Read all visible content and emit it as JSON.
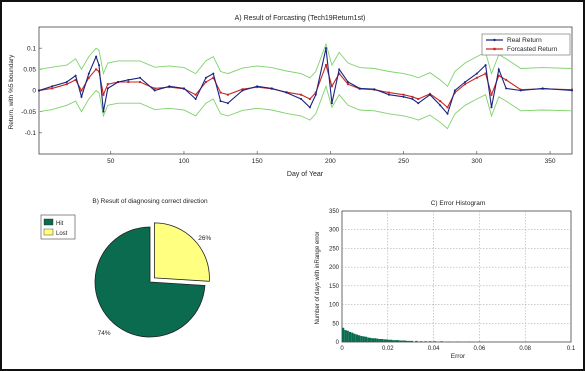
{
  "chart_data": [
    {
      "type": "line",
      "title": "A) Result of Forcasting (Tech19Return1st)",
      "xlabel": "Day of Year",
      "ylabel": "Return, with %5 boundary",
      "xlim": [
        1,
        365
      ],
      "ylim": [
        -0.15,
        0.15
      ],
      "x_ticks": [
        50,
        100,
        150,
        200,
        250,
        300,
        350
      ],
      "y_ticks": [
        -0.1,
        -0.05,
        0,
        0.05,
        0.1
      ],
      "y_tick_labels": [
        "-0.1",
        "-0.05",
        "0",
        "0.05",
        "0.1"
      ],
      "legend": {
        "position": "top-right",
        "entries": [
          "Real Return",
          "Forcasted Return"
        ]
      },
      "series": [
        {
          "name": "Real Return",
          "color": "#1a237e",
          "points": [
            [
              1,
              0
            ],
            [
              10,
              0.01
            ],
            [
              20,
              0.02
            ],
            [
              26,
              0.035
            ],
            [
              30,
              -0.015
            ],
            [
              35,
              0.04
            ],
            [
              40,
              0.08
            ],
            [
              42,
              0.06
            ],
            [
              45,
              -0.05
            ],
            [
              48,
              0.005
            ],
            [
              55,
              0.02
            ],
            [
              62,
              0.025
            ],
            [
              70,
              0.03
            ],
            [
              80,
              0
            ],
            [
              90,
              0.01
            ],
            [
              100,
              0.005
            ],
            [
              108,
              -0.02
            ],
            [
              115,
              0.03
            ],
            [
              120,
              0.04
            ],
            [
              125,
              -0.025
            ],
            [
              130,
              -0.03
            ],
            [
              140,
              0
            ],
            [
              150,
              0.01
            ],
            [
              160,
              0.005
            ],
            [
              170,
              -0.005
            ],
            [
              180,
              -0.02
            ],
            [
              186,
              -0.04
            ],
            [
              190,
              -0.01
            ],
            [
              197,
              0.1
            ],
            [
              201,
              -0.03
            ],
            [
              206,
              0.05
            ],
            [
              212,
              0.02
            ],
            [
              220,
              0.005
            ],
            [
              230,
              0.003
            ],
            [
              240,
              -0.01
            ],
            [
              250,
              -0.015
            ],
            [
              256,
              -0.02
            ],
            [
              260,
              -0.03
            ],
            [
              268,
              -0.01
            ],
            [
              275,
              -0.035
            ],
            [
              280,
              -0.055
            ],
            [
              285,
              0
            ],
            [
              292,
              0.02
            ],
            [
              300,
              0.04
            ],
            [
              306,
              0.06
            ],
            [
              310,
              -0.04
            ],
            [
              315,
              0.05
            ],
            [
              320,
              0.005
            ],
            [
              330,
              0
            ],
            [
              345,
              0.005
            ],
            [
              365,
              0
            ]
          ]
        },
        {
          "name": "Forcasted Return",
          "color": "#c62828",
          "points": [
            [
              1,
              0
            ],
            [
              10,
              0.005
            ],
            [
              20,
              0.015
            ],
            [
              26,
              0.025
            ],
            [
              30,
              0
            ],
            [
              35,
              0.03
            ],
            [
              40,
              0.05
            ],
            [
              42,
              0.045
            ],
            [
              45,
              -0.01
            ],
            [
              48,
              0.015
            ],
            [
              55,
              0.02
            ],
            [
              62,
              0.02
            ],
            [
              70,
              0.02
            ],
            [
              80,
              0.005
            ],
            [
              90,
              0.008
            ],
            [
              100,
              0.004
            ],
            [
              108,
              -0.01
            ],
            [
              115,
              0.02
            ],
            [
              120,
              0.03
            ],
            [
              125,
              -0.005
            ],
            [
              130,
              -0.01
            ],
            [
              140,
              0.003
            ],
            [
              150,
              0.008
            ],
            [
              160,
              0.004
            ],
            [
              170,
              -0.004
            ],
            [
              180,
              -0.01
            ],
            [
              186,
              -0.02
            ],
            [
              190,
              -0.005
            ],
            [
              197,
              0.06
            ],
            [
              201,
              0.01
            ],
            [
              206,
              0.04
            ],
            [
              212,
              0.015
            ],
            [
              220,
              0.004
            ],
            [
              230,
              0.002
            ],
            [
              240,
              -0.005
            ],
            [
              250,
              -0.01
            ],
            [
              256,
              -0.015
            ],
            [
              260,
              -0.02
            ],
            [
              268,
              -0.008
            ],
            [
              275,
              -0.025
            ],
            [
              280,
              -0.04
            ],
            [
              285,
              -0.005
            ],
            [
              292,
              0.015
            ],
            [
              300,
              0.03
            ],
            [
              306,
              0.04
            ],
            [
              310,
              -0.01
            ],
            [
              315,
              0.035
            ],
            [
              320,
              0.025
            ],
            [
              330,
              0.002
            ],
            [
              345,
              0.004
            ],
            [
              365,
              0.002
            ]
          ]
        },
        {
          "name": "",
          "color": "#7ed36b",
          "points": [
            [
              1,
              0.05
            ],
            [
              10,
              0.055
            ],
            [
              20,
              0.06
            ],
            [
              26,
              0.075
            ],
            [
              30,
              0.05
            ],
            [
              35,
              0.08
            ],
            [
              40,
              0.1
            ],
            [
              42,
              0.095
            ],
            [
              45,
              0.04
            ],
            [
              48,
              0.065
            ],
            [
              55,
              0.07
            ],
            [
              62,
              0.07
            ],
            [
              70,
              0.07
            ],
            [
              80,
              0.055
            ],
            [
              90,
              0.058
            ],
            [
              100,
              0.054
            ],
            [
              108,
              0.04
            ],
            [
              115,
              0.07
            ],
            [
              120,
              0.08
            ],
            [
              125,
              0.045
            ],
            [
              130,
              0.04
            ],
            [
              140,
              0.053
            ],
            [
              150,
              0.058
            ],
            [
              160,
              0.054
            ],
            [
              170,
              0.046
            ],
            [
              180,
              0.04
            ],
            [
              186,
              0.03
            ],
            [
              190,
              0.045
            ],
            [
              197,
              0.11
            ],
            [
              201,
              0.06
            ],
            [
              206,
              0.09
            ],
            [
              212,
              0.065
            ],
            [
              220,
              0.054
            ],
            [
              230,
              0.052
            ],
            [
              240,
              0.045
            ],
            [
              250,
              0.04
            ],
            [
              256,
              0.035
            ],
            [
              260,
              0.03
            ],
            [
              268,
              0.042
            ],
            [
              275,
              0.025
            ],
            [
              280,
              0.01
            ],
            [
              285,
              0.045
            ],
            [
              292,
              0.065
            ],
            [
              300,
              0.08
            ],
            [
              306,
              0.09
            ],
            [
              310,
              0.04
            ],
            [
              315,
              0.085
            ],
            [
              320,
              0.075
            ],
            [
              330,
              0.052
            ],
            [
              345,
              0.054
            ],
            [
              365,
              0.052
            ]
          ]
        },
        {
          "name": "",
          "color": "#7ed36b",
          "points": [
            [
              1,
              -0.05
            ],
            [
              10,
              -0.045
            ],
            [
              20,
              -0.035
            ],
            [
              26,
              -0.025
            ],
            [
              30,
              -0.05
            ],
            [
              35,
              -0.02
            ],
            [
              40,
              0
            ],
            [
              42,
              -0.005
            ],
            [
              45,
              -0.06
            ],
            [
              48,
              -0.035
            ],
            [
              55,
              -0.03
            ],
            [
              62,
              -0.03
            ],
            [
              70,
              -0.03
            ],
            [
              80,
              -0.045
            ],
            [
              90,
              -0.042
            ],
            [
              100,
              -0.046
            ],
            [
              108,
              -0.06
            ],
            [
              115,
              -0.03
            ],
            [
              120,
              -0.02
            ],
            [
              125,
              -0.055
            ],
            [
              130,
              -0.06
            ],
            [
              140,
              -0.047
            ],
            [
              150,
              -0.042
            ],
            [
              160,
              -0.046
            ],
            [
              170,
              -0.054
            ],
            [
              180,
              -0.06
            ],
            [
              186,
              -0.07
            ],
            [
              190,
              -0.055
            ],
            [
              197,
              0.01
            ],
            [
              201,
              -0.04
            ],
            [
              206,
              -0.01
            ],
            [
              212,
              -0.035
            ],
            [
              220,
              -0.046
            ],
            [
              230,
              -0.048
            ],
            [
              240,
              -0.055
            ],
            [
              250,
              -0.06
            ],
            [
              256,
              -0.065
            ],
            [
              260,
              -0.07
            ],
            [
              268,
              -0.058
            ],
            [
              275,
              -0.075
            ],
            [
              280,
              -0.09
            ],
            [
              285,
              -0.055
            ],
            [
              292,
              -0.035
            ],
            [
              300,
              -0.02
            ],
            [
              306,
              -0.01
            ],
            [
              310,
              -0.06
            ],
            [
              315,
              -0.015
            ],
            [
              320,
              -0.025
            ],
            [
              330,
              -0.048
            ],
            [
              345,
              -0.046
            ],
            [
              365,
              -0.048
            ]
          ]
        }
      ]
    },
    {
      "type": "pie",
      "title": "B) Result of diagnosing correct direction",
      "categories": [
        "Hit",
        "Lost"
      ],
      "values": [
        74,
        26
      ],
      "labels": [
        "74%",
        "26%"
      ],
      "colors": [
        "#0b6b4f",
        "#ffff80"
      ],
      "exploded": [
        "Lost"
      ],
      "legend": {
        "position": "top-left",
        "entries": [
          "Hit",
          "Lost"
        ]
      }
    },
    {
      "type": "bar",
      "title": "C) Error Histogram",
      "xlabel": "Error",
      "ylabel": "Number of days with inRange error",
      "xlim": [
        0,
        0.1
      ],
      "ylim": [
        0,
        350
      ],
      "x_ticks": [
        0,
        0.02,
        0.04,
        0.06,
        0.08,
        0.1
      ],
      "x_tick_labels": [
        "0",
        "0.02",
        "0.04",
        "0.06",
        "0.08",
        "0.1"
      ],
      "y_ticks": [
        0,
        50,
        100,
        150,
        200,
        250,
        300,
        350
      ],
      "grid": true,
      "color": "#0b6b4f",
      "bin_width": 0.001,
      "bin_starts": [
        0,
        0.001,
        0.002,
        0.003,
        0.004,
        0.005,
        0.006,
        0.007,
        0.008,
        0.009,
        0.01,
        0.011,
        0.012,
        0.013,
        0.014,
        0.015,
        0.016,
        0.017,
        0.018,
        0.019,
        0.02,
        0.021,
        0.022,
        0.023,
        0.024,
        0.025,
        0.026,
        0.027,
        0.028,
        0.029,
        0.03,
        0.032,
        0.034,
        0.036,
        0.038,
        0.04,
        0.043,
        0.046,
        0.05,
        0.055,
        0.06
      ],
      "counts": [
        38,
        32,
        30,
        27,
        25,
        22,
        20,
        18,
        16,
        15,
        14,
        12,
        11,
        10,
        10,
        9,
        8,
        8,
        7,
        7,
        6,
        6,
        5,
        5,
        5,
        4,
        4,
        4,
        3,
        3,
        3,
        3,
        2,
        2,
        2,
        2,
        2,
        1,
        1,
        1,
        1
      ]
    }
  ]
}
